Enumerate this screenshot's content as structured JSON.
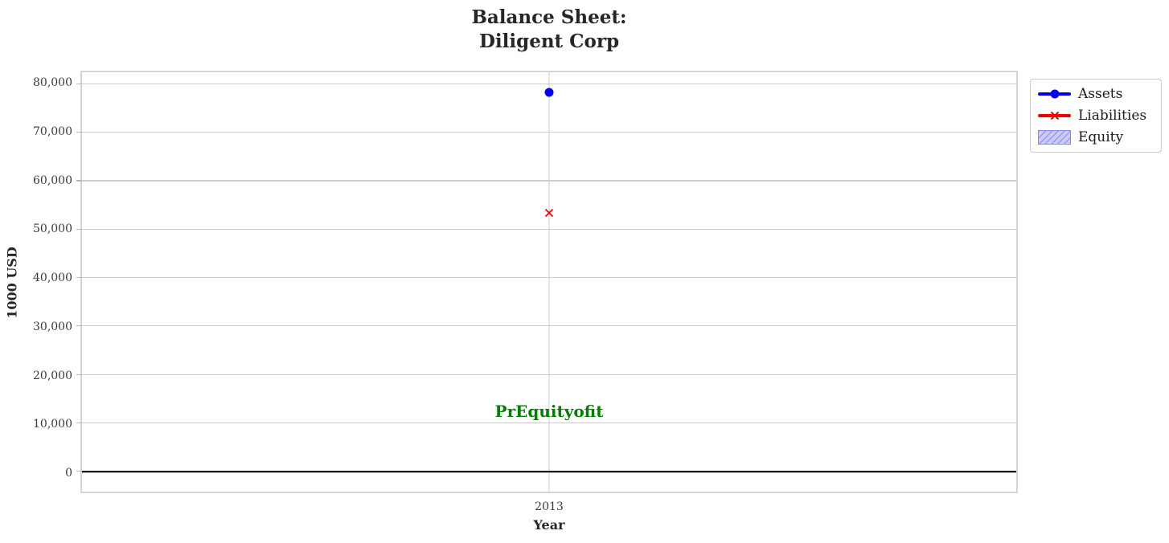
{
  "figure": {
    "title_line1": "Balance Sheet:",
    "title_line2": "Diligent Corp"
  },
  "chart_data": {
    "type": "line",
    "title": "Balance Sheet:\nDiligent Corp",
    "xlabel": "Year",
    "ylabel": "1000 USD",
    "x": [
      2013
    ],
    "xticklabels": [
      "2013"
    ],
    "series": [
      {
        "name": "Assets",
        "marker": "circle",
        "values": [
          78400
        ]
      },
      {
        "name": "Liabilities",
        "marker": "x",
        "values": [
          53500
        ]
      },
      {
        "name": "Equity",
        "marker": "hatched-patch",
        "values": [
          null
        ]
      }
    ],
    "yticks": [
      0,
      10000,
      20000,
      30000,
      40000,
      50000,
      60000,
      70000,
      80000
    ],
    "ylim": [
      -4100,
      82500
    ],
    "grid": true,
    "legend_position": "outside-top-right",
    "zero_line": {
      "y": 0
    },
    "annotations": [
      {
        "text": "PrEquityofit",
        "x": 2013,
        "y": 12500
      }
    ]
  },
  "colors": {
    "assets": "#0000f0",
    "liabilities": "#f00000",
    "equity_fill": "#ccccfa",
    "equity_hatch": "#9898ee",
    "annotation": "#008000",
    "grid": "#cccccc",
    "zero_line": "#000000"
  }
}
